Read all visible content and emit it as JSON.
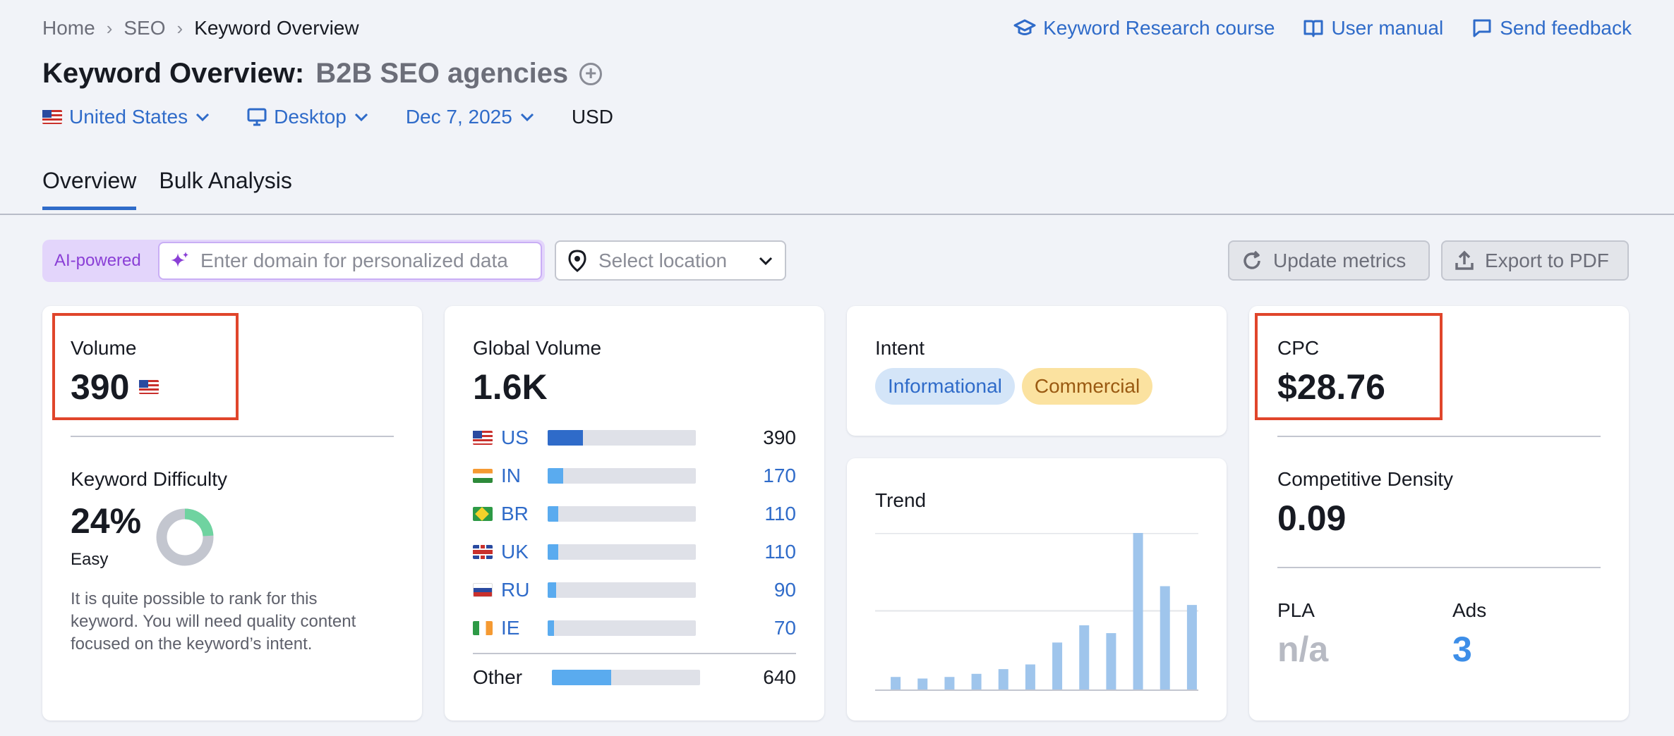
{
  "breadcrumb": {
    "home": "Home",
    "section": "SEO",
    "current": "Keyword Overview"
  },
  "top_links": {
    "course": "Keyword Research course",
    "manual": "User manual",
    "feedback": "Send feedback"
  },
  "title": {
    "prefix": "Keyword Overview:",
    "keyword": "B2B SEO agencies"
  },
  "filters": {
    "country": "United States",
    "device": "Desktop",
    "date": "Dec 7, 2025",
    "currency": "USD"
  },
  "tabs": [
    {
      "label": "Overview"
    },
    {
      "label": "Bulk Analysis"
    }
  ],
  "toolbar": {
    "ai_label": "AI-powered",
    "domain_placeholder": "Enter domain for personalized data",
    "location_placeholder": "Select location",
    "update_label": "Update metrics",
    "export_label": "Export to PDF"
  },
  "volume": {
    "label": "Volume",
    "value": "390"
  },
  "keyword_difficulty": {
    "label": "Keyword Difficulty",
    "value": "24%",
    "percent": 24,
    "level": "Easy",
    "note": "It is quite possible to rank for this keyword. You will need quality content focused on the keyword’s intent."
  },
  "global_volume": {
    "label": "Global Volume",
    "value": "1.6K",
    "countries": [
      {
        "code": "US",
        "value": "390",
        "share": 0.24
      },
      {
        "code": "IN",
        "value": "170",
        "share": 0.105
      },
      {
        "code": "BR",
        "value": "110",
        "share": 0.07
      },
      {
        "code": "UK",
        "value": "110",
        "share": 0.07
      },
      {
        "code": "RU",
        "value": "90",
        "share": 0.056
      },
      {
        "code": "IE",
        "value": "70",
        "share": 0.044
      }
    ],
    "other": {
      "label": "Other",
      "value": "640",
      "share": 0.4
    }
  },
  "intent": {
    "label": "Intent",
    "tags": [
      "Informational",
      "Commercial"
    ]
  },
  "trend": {
    "label": "Trend",
    "values": [
      8,
      7,
      8,
      10,
      13,
      16,
      30,
      41,
      36,
      100,
      66,
      54
    ]
  },
  "cpc": {
    "label": "CPC",
    "value": "$28.76"
  },
  "competitive_density": {
    "label": "Competitive Density",
    "value": "0.09"
  },
  "pla": {
    "label": "PLA",
    "value": "n/a"
  },
  "ads": {
    "label": "Ads",
    "value": "3"
  },
  "colors": {
    "accent": "#2f6bc9",
    "bar_light": "#5aabef",
    "trend_bar": "#9fc5ec",
    "highlight": "#e0452b",
    "kd_green": "#6fd3a0",
    "kd_gray": "#c3c6cf"
  }
}
